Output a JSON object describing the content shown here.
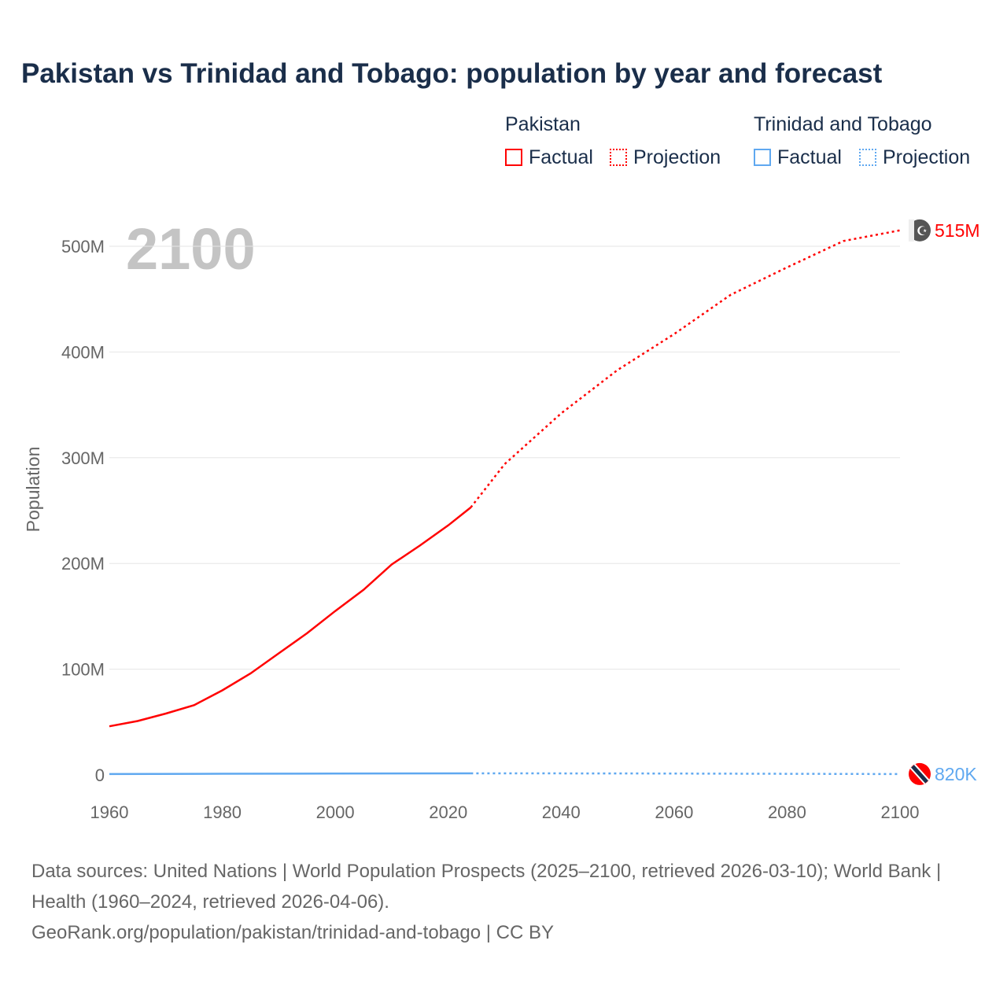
{
  "title": "Pakistan vs Trinidad and Tobago: population by year and forecast",
  "legend": {
    "groups": [
      {
        "name": "Pakistan",
        "color": "#ff0000",
        "items": [
          "Factual",
          "Projection"
        ]
      },
      {
        "name": "Trinidad and Tobago",
        "color": "#5fa8f0",
        "items": [
          "Factual",
          "Projection"
        ]
      }
    ]
  },
  "year_label": "2100",
  "footer": {
    "line1": "Data sources: United Nations | World Population Prospects (2025–2100, retrieved 2026-03-10); World Bank | Health (1960–2024, retrieved 2026-04-06).",
    "line2": "GeoRank.org/population/pakistan/trinidad-and-tobago | CC BY"
  },
  "chart_data": {
    "type": "line",
    "title": "Pakistan vs Trinidad and Tobago: population by year and forecast",
    "xlabel": "",
    "ylabel": "Population",
    "xlim": [
      1960,
      2100
    ],
    "ylim": [
      0,
      520
    ],
    "x_ticks": [
      "1960",
      "1980",
      "2000",
      "2020",
      "2040",
      "2060",
      "2080",
      "2100"
    ],
    "y_ticks": [
      {
        "v": 0,
        "label": "0"
      },
      {
        "v": 100,
        "label": "100M"
      },
      {
        "v": 200,
        "label": "200M"
      },
      {
        "v": 300,
        "label": "300M"
      },
      {
        "v": 400,
        "label": "400M"
      },
      {
        "v": 500,
        "label": "500M"
      }
    ],
    "grid": true,
    "units": "millions",
    "series": [
      {
        "name": "Pakistan",
        "color": "#ff0000",
        "end_label": "515M",
        "flag": "pakistan-flag",
        "factual": [
          [
            1960,
            46
          ],
          [
            1965,
            51
          ],
          [
            1970,
            58
          ],
          [
            1975,
            66
          ],
          [
            1980,
            80
          ],
          [
            1985,
            96
          ],
          [
            1990,
            115
          ],
          [
            1995,
            134
          ],
          [
            2000,
            155
          ],
          [
            2005,
            175
          ],
          [
            2010,
            199
          ],
          [
            2015,
            217
          ],
          [
            2020,
            236
          ],
          [
            2024,
            253
          ]
        ],
        "projection": [
          [
            2024,
            253
          ],
          [
            2030,
            294
          ],
          [
            2040,
            342
          ],
          [
            2050,
            383
          ],
          [
            2060,
            417
          ],
          [
            2070,
            454
          ],
          [
            2080,
            480
          ],
          [
            2090,
            505
          ],
          [
            2100,
            515
          ]
        ]
      },
      {
        "name": "Trinidad and Tobago",
        "color": "#5fa8f0",
        "end_label": "820K",
        "flag": "trinidad-flag",
        "factual": [
          [
            1960,
            0.85
          ],
          [
            1980,
            1.08
          ],
          [
            2000,
            1.27
          ],
          [
            2024,
            1.51
          ]
        ],
        "projection": [
          [
            2024,
            1.51
          ],
          [
            2050,
            1.4
          ],
          [
            2075,
            1.1
          ],
          [
            2100,
            0.82
          ]
        ]
      }
    ]
  }
}
